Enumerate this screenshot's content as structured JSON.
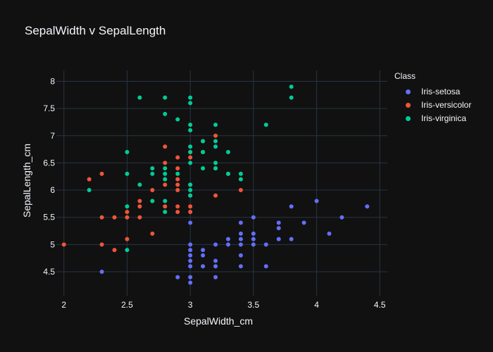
{
  "chart_data": {
    "type": "scatter",
    "title": "SepalWidth v SepalLength",
    "xlabel": "SepalWidth_cm",
    "ylabel": "SepalLength_cm",
    "xlim": [
      1.94,
      4.56
    ],
    "ylim": [
      4.06,
      8.2
    ],
    "x_ticks": [
      2,
      2.5,
      3,
      3.5,
      4,
      4.5
    ],
    "x_tick_labels": [
      "2",
      "2.5",
      "3",
      "3.5",
      "4",
      "4.5"
    ],
    "y_ticks": [
      4.5,
      5,
      5.5,
      6,
      6.5,
      7,
      7.5,
      8
    ],
    "y_tick_labels": [
      "4.5",
      "5",
      "5.5",
      "6",
      "6.5",
      "7",
      "7.5",
      "8"
    ],
    "grid": true,
    "legend_title": "Class",
    "legend_position": "top-right",
    "series": [
      {
        "name": "Iris-setosa",
        "color": "#636efa",
        "points": [
          [
            2.3,
            4.5
          ],
          [
            2.9,
            4.4
          ],
          [
            3.0,
            4.4
          ],
          [
            3.0,
            4.3
          ],
          [
            3.0,
            4.8
          ],
          [
            3.0,
            4.9
          ],
          [
            3.0,
            5.0
          ],
          [
            3.0,
            4.7
          ],
          [
            3.0,
            4.6
          ],
          [
            3.0,
            5.4
          ],
          [
            3.1,
            4.9
          ],
          [
            3.1,
            4.8
          ],
          [
            3.1,
            4.6
          ],
          [
            3.2,
            4.7
          ],
          [
            3.2,
            4.6
          ],
          [
            3.2,
            4.4
          ],
          [
            3.2,
            5.0
          ],
          [
            3.3,
            5.1
          ],
          [
            3.3,
            5.0
          ],
          [
            3.4,
            5.4
          ],
          [
            3.4,
            5.2
          ],
          [
            3.4,
            5.1
          ],
          [
            3.4,
            5.0
          ],
          [
            3.4,
            4.8
          ],
          [
            3.4,
            4.6
          ],
          [
            3.5,
            5.5
          ],
          [
            3.5,
            5.2
          ],
          [
            3.5,
            5.1
          ],
          [
            3.5,
            5.0
          ],
          [
            3.6,
            5.0
          ],
          [
            3.6,
            4.6
          ],
          [
            3.7,
            5.4
          ],
          [
            3.7,
            5.3
          ],
          [
            3.7,
            5.1
          ],
          [
            3.8,
            5.7
          ],
          [
            3.8,
            5.1
          ],
          [
            3.9,
            5.4
          ],
          [
            4.0,
            5.8
          ],
          [
            4.1,
            5.2
          ],
          [
            4.2,
            5.5
          ],
          [
            4.4,
            5.7
          ]
        ]
      },
      {
        "name": "Iris-versicolor",
        "color": "#ef553b",
        "points": [
          [
            2.0,
            5.0
          ],
          [
            2.2,
            6.2
          ],
          [
            2.3,
            6.3
          ],
          [
            2.3,
            5.5
          ],
          [
            2.3,
            5.0
          ],
          [
            2.4,
            5.5
          ],
          [
            2.4,
            4.9
          ],
          [
            2.5,
            5.5
          ],
          [
            2.5,
            5.1
          ],
          [
            2.5,
            5.6
          ],
          [
            2.6,
            5.8
          ],
          [
            2.6,
            5.7
          ],
          [
            2.6,
            5.5
          ],
          [
            2.7,
            6.0
          ],
          [
            2.7,
            5.8
          ],
          [
            2.7,
            5.2
          ],
          [
            2.8,
            6.8
          ],
          [
            2.8,
            6.5
          ],
          [
            2.8,
            6.1
          ],
          [
            2.8,
            5.7
          ],
          [
            2.9,
            6.6
          ],
          [
            2.9,
            6.4
          ],
          [
            2.9,
            6.2
          ],
          [
            2.9,
            6.1
          ],
          [
            2.9,
            6.0
          ],
          [
            2.9,
            5.7
          ],
          [
            2.9,
            5.6
          ],
          [
            3.0,
            6.7
          ],
          [
            3.0,
            6.6
          ],
          [
            3.0,
            6.1
          ],
          [
            3.0,
            5.9
          ],
          [
            3.0,
            5.7
          ],
          [
            3.0,
            5.6
          ],
          [
            3.1,
            6.9
          ],
          [
            3.1,
            6.7
          ],
          [
            3.2,
            7.0
          ],
          [
            3.2,
            6.4
          ],
          [
            3.2,
            5.9
          ],
          [
            3.3,
            6.3
          ],
          [
            3.4,
            6.0
          ]
        ]
      },
      {
        "name": "Iris-virginica",
        "color": "#00cc96",
        "points": [
          [
            2.2,
            6.0
          ],
          [
            2.5,
            6.7
          ],
          [
            2.5,
            6.3
          ],
          [
            2.5,
            5.7
          ],
          [
            2.5,
            4.9
          ],
          [
            2.6,
            7.7
          ],
          [
            2.6,
            6.1
          ],
          [
            2.7,
            6.4
          ],
          [
            2.7,
            6.3
          ],
          [
            2.7,
            5.8
          ],
          [
            2.8,
            7.7
          ],
          [
            2.8,
            7.4
          ],
          [
            2.8,
            6.4
          ],
          [
            2.8,
            6.3
          ],
          [
            2.8,
            6.2
          ],
          [
            2.8,
            5.8
          ],
          [
            2.8,
            5.6
          ],
          [
            2.9,
            7.3
          ],
          [
            2.9,
            6.3
          ],
          [
            3.0,
            7.7
          ],
          [
            3.0,
            7.6
          ],
          [
            3.0,
            7.2
          ],
          [
            3.0,
            7.1
          ],
          [
            3.0,
            6.8
          ],
          [
            3.0,
            6.7
          ],
          [
            3.0,
            6.5
          ],
          [
            3.0,
            6.1
          ],
          [
            3.0,
            6.0
          ],
          [
            3.0,
            5.9
          ],
          [
            3.1,
            6.9
          ],
          [
            3.1,
            6.7
          ],
          [
            3.1,
            6.4
          ],
          [
            3.2,
            7.2
          ],
          [
            3.2,
            6.9
          ],
          [
            3.2,
            6.8
          ],
          [
            3.2,
            6.5
          ],
          [
            3.2,
            6.4
          ],
          [
            3.3,
            6.7
          ],
          [
            3.3,
            6.3
          ],
          [
            3.4,
            6.3
          ],
          [
            3.4,
            6.2
          ],
          [
            3.6,
            7.2
          ],
          [
            3.8,
            7.9
          ],
          [
            3.8,
            7.7
          ]
        ]
      }
    ]
  }
}
